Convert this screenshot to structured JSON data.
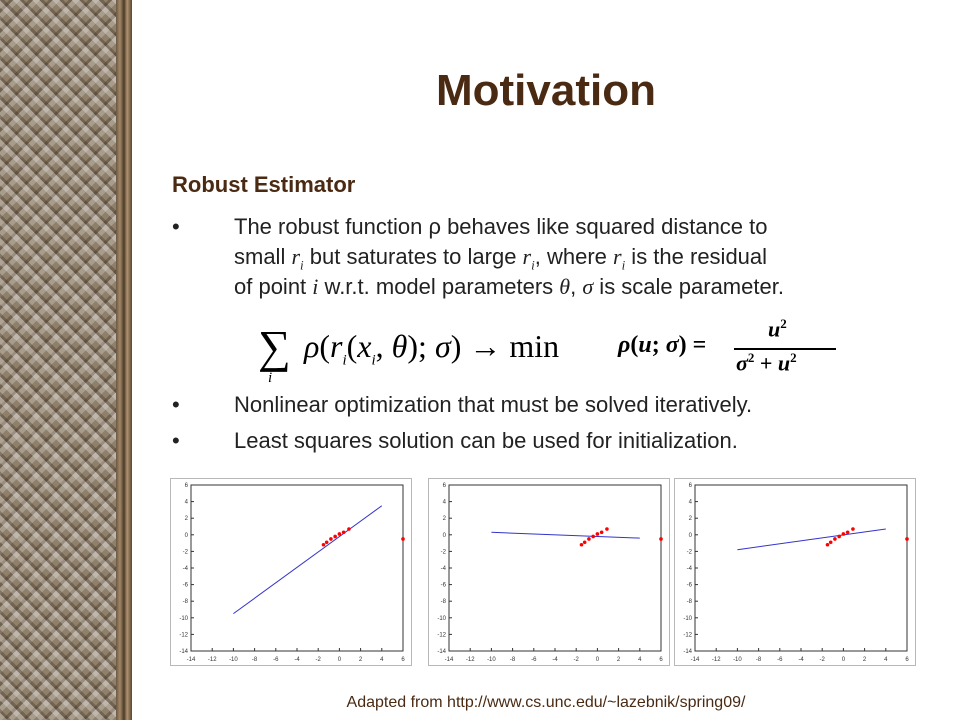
{
  "slide": {
    "title": "Motivation",
    "subtitle": "Robust Estimator",
    "bullets": [
      {
        "lines": [
          [
            "The robust function ρ behaves like squared distance to"
          ],
          [
            "small ",
            "r_i",
            " but saturates to large ",
            "r_i",
            ", where ",
            "r_i",
            " is the residual"
          ],
          [
            "of point ",
            "i",
            " w.r.t. model parameters ",
            "θ",
            ", ",
            "σ",
            " is scale parameter."
          ]
        ]
      },
      {
        "text": "Nonlinear optimization that must be solved iteratively."
      },
      {
        "text": "Least squares solution can be used for initialization."
      }
    ],
    "formula_left": "Σ_i ρ( r_i(x_i, θ); σ ) → min",
    "formula_right": "ρ(u; σ) = u² / (σ² + u²)",
    "source": "Adapted from http://www.cs.unc.edu/~lazebnik/spring09/"
  },
  "plots": [
    {
      "xticks": [
        -14,
        -12,
        -10,
        -8,
        -6,
        -4,
        -2,
        0,
        2,
        4,
        6
      ],
      "yticks": [
        6,
        4,
        2,
        0,
        -2,
        -4,
        -6,
        -8,
        -10,
        -12,
        -14
      ],
      "line": [
        [
          -10,
          -9.5
        ],
        [
          4,
          3.5
        ]
      ],
      "points": [
        [
          -1.5,
          -1.2
        ],
        [
          -1.2,
          -0.9
        ],
        [
          -0.8,
          -0.5
        ],
        [
          -0.4,
          -0.2
        ],
        [
          0,
          0.1
        ],
        [
          0.4,
          0.3
        ],
        [
          0.9,
          0.7
        ],
        [
          6,
          -0.5
        ]
      ],
      "line_color": "#3333cc",
      "point_color": "#ff0000"
    },
    {
      "xticks": [
        -14,
        -12,
        -10,
        -8,
        -6,
        -4,
        -2,
        0,
        2,
        4,
        6
      ],
      "yticks": [
        6,
        4,
        2,
        0,
        -2,
        -4,
        -6,
        -8,
        -10,
        -12,
        -14
      ],
      "line": [
        [
          -10,
          0.3
        ],
        [
          4,
          -0.4
        ]
      ],
      "points": [
        [
          -1.5,
          -1.2
        ],
        [
          -1.2,
          -0.9
        ],
        [
          -0.8,
          -0.5
        ],
        [
          -0.4,
          -0.2
        ],
        [
          0,
          0.1
        ],
        [
          0.4,
          0.3
        ],
        [
          0.9,
          0.7
        ],
        [
          6,
          -0.5
        ]
      ],
      "line_color": "#3333cc",
      "point_color": "#ff0000"
    },
    {
      "xticks": [
        -14,
        -12,
        -10,
        -8,
        -6,
        -4,
        -2,
        0,
        2,
        4,
        6
      ],
      "yticks": [
        6,
        4,
        2,
        0,
        -2,
        -4,
        -6,
        -8,
        -10,
        -12,
        -14
      ],
      "line": [
        [
          -10,
          -1.8
        ],
        [
          4,
          0.7
        ]
      ],
      "points": [
        [
          -1.5,
          -1.2
        ],
        [
          -1.2,
          -0.9
        ],
        [
          -0.8,
          -0.5
        ],
        [
          -0.4,
          -0.2
        ],
        [
          0,
          0.1
        ],
        [
          0.4,
          0.3
        ],
        [
          0.9,
          0.7
        ],
        [
          6,
          -0.5
        ]
      ],
      "line_color": "#3333cc",
      "point_color": "#ff0000"
    }
  ]
}
